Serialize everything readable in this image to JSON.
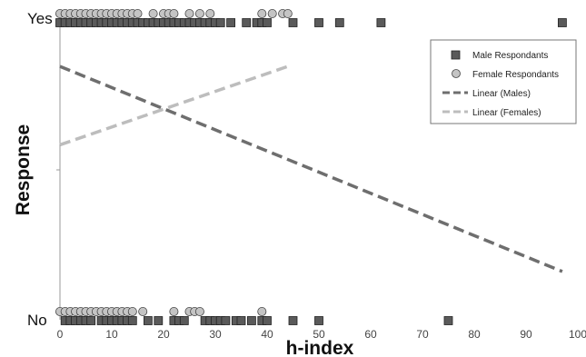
{
  "chart_data": {
    "type": "scatter",
    "xlabel": "h-index",
    "ylabel": "Response",
    "xlim": [
      0,
      100
    ],
    "x_ticks": [
      0,
      10,
      20,
      30,
      40,
      50,
      60,
      70,
      80,
      90,
      100
    ],
    "y_categories": [
      "No",
      "Yes"
    ],
    "legend_position": "top-right",
    "colors": {
      "male_marker": "#5a5a5a",
      "female_marker": "#c4c4c4",
      "male_trend": "#6e6e6e",
      "female_trend": "#bdbdbd"
    },
    "series": [
      {
        "name": "Male Respondants",
        "marker": "square",
        "yes": [
          0,
          1,
          2,
          3,
          4,
          5,
          6,
          7,
          8,
          9,
          10,
          11,
          12,
          13,
          14,
          15,
          16,
          17,
          18,
          19,
          20,
          21,
          22,
          23,
          24,
          25,
          26,
          27,
          28,
          29,
          30,
          31,
          33,
          36,
          38,
          39,
          40,
          45,
          50,
          54,
          62,
          97
        ],
        "no": [
          1,
          2,
          3,
          4,
          5,
          6,
          8,
          9,
          10,
          11,
          12,
          13,
          14,
          17,
          19,
          22,
          23,
          24,
          28,
          29,
          30,
          31,
          32,
          34,
          35,
          37,
          39,
          40,
          45,
          50,
          75
        ]
      },
      {
        "name": "Female Respondants",
        "marker": "circle",
        "yes": [
          0,
          1,
          2,
          3,
          4,
          5,
          6,
          7,
          8,
          9,
          10,
          11,
          12,
          13,
          14,
          15,
          18,
          20,
          21,
          22,
          25,
          27,
          29,
          39,
          41,
          43,
          44
        ],
        "no": [
          0,
          1,
          2,
          3,
          4,
          5,
          6,
          7,
          8,
          9,
          10,
          11,
          12,
          13,
          14,
          16,
          22,
          25,
          26,
          27,
          39
        ]
      },
      {
        "name": "Linear (Males)",
        "line": "dashed",
        "x": [
          0,
          97
        ],
        "y": [
          0.84,
          0.16
        ]
      },
      {
        "name": "Linear (Females)",
        "line": "dashed",
        "x": [
          0,
          44
        ],
        "y": [
          0.58,
          0.84
        ]
      }
    ]
  }
}
